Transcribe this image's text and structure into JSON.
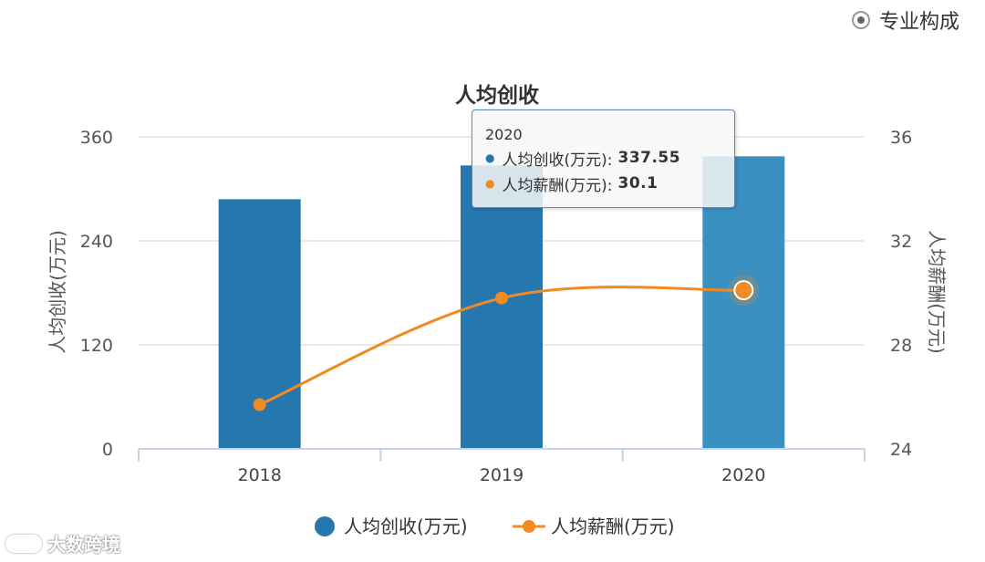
{
  "toggle": {
    "label": "专业构成"
  },
  "tooltip": {
    "header": "2020",
    "rows": [
      {
        "label": "人均创收(万元):",
        "value": "337.55",
        "color": "#2577ad"
      },
      {
        "label": "人均薪酬(万元):",
        "value": "30.1",
        "color": "#f28a23"
      }
    ]
  },
  "watermark": {
    "text": "大数跨境"
  },
  "chart_data": {
    "type": "bar",
    "title": "人均创收",
    "categories": [
      "2018",
      "2019",
      "2020"
    ],
    "series": [
      {
        "name": "人均创收(万元)",
        "type": "bar",
        "axis": "left",
        "values": [
          288,
          327,
          337.55
        ],
        "color": "#2577ad",
        "highlight_color": "#3a90c1"
      },
      {
        "name": "人均薪酬(万元)",
        "type": "line",
        "axis": "right",
        "values": [
          25.7,
          29.8,
          30.1
        ],
        "color": "#f28a23"
      }
    ],
    "ylabel": "人均创收(万元)",
    "ylim": [
      0,
      360
    ],
    "yticks": [
      "0",
      "120",
      "240",
      "360"
    ],
    "y2label": "人均薪酬(万元)",
    "y2lim": [
      24,
      36
    ],
    "y2ticks": [
      "24",
      "28",
      "32",
      "36"
    ],
    "highlighted_category": "2020",
    "grid": true,
    "legend": "bottom"
  }
}
